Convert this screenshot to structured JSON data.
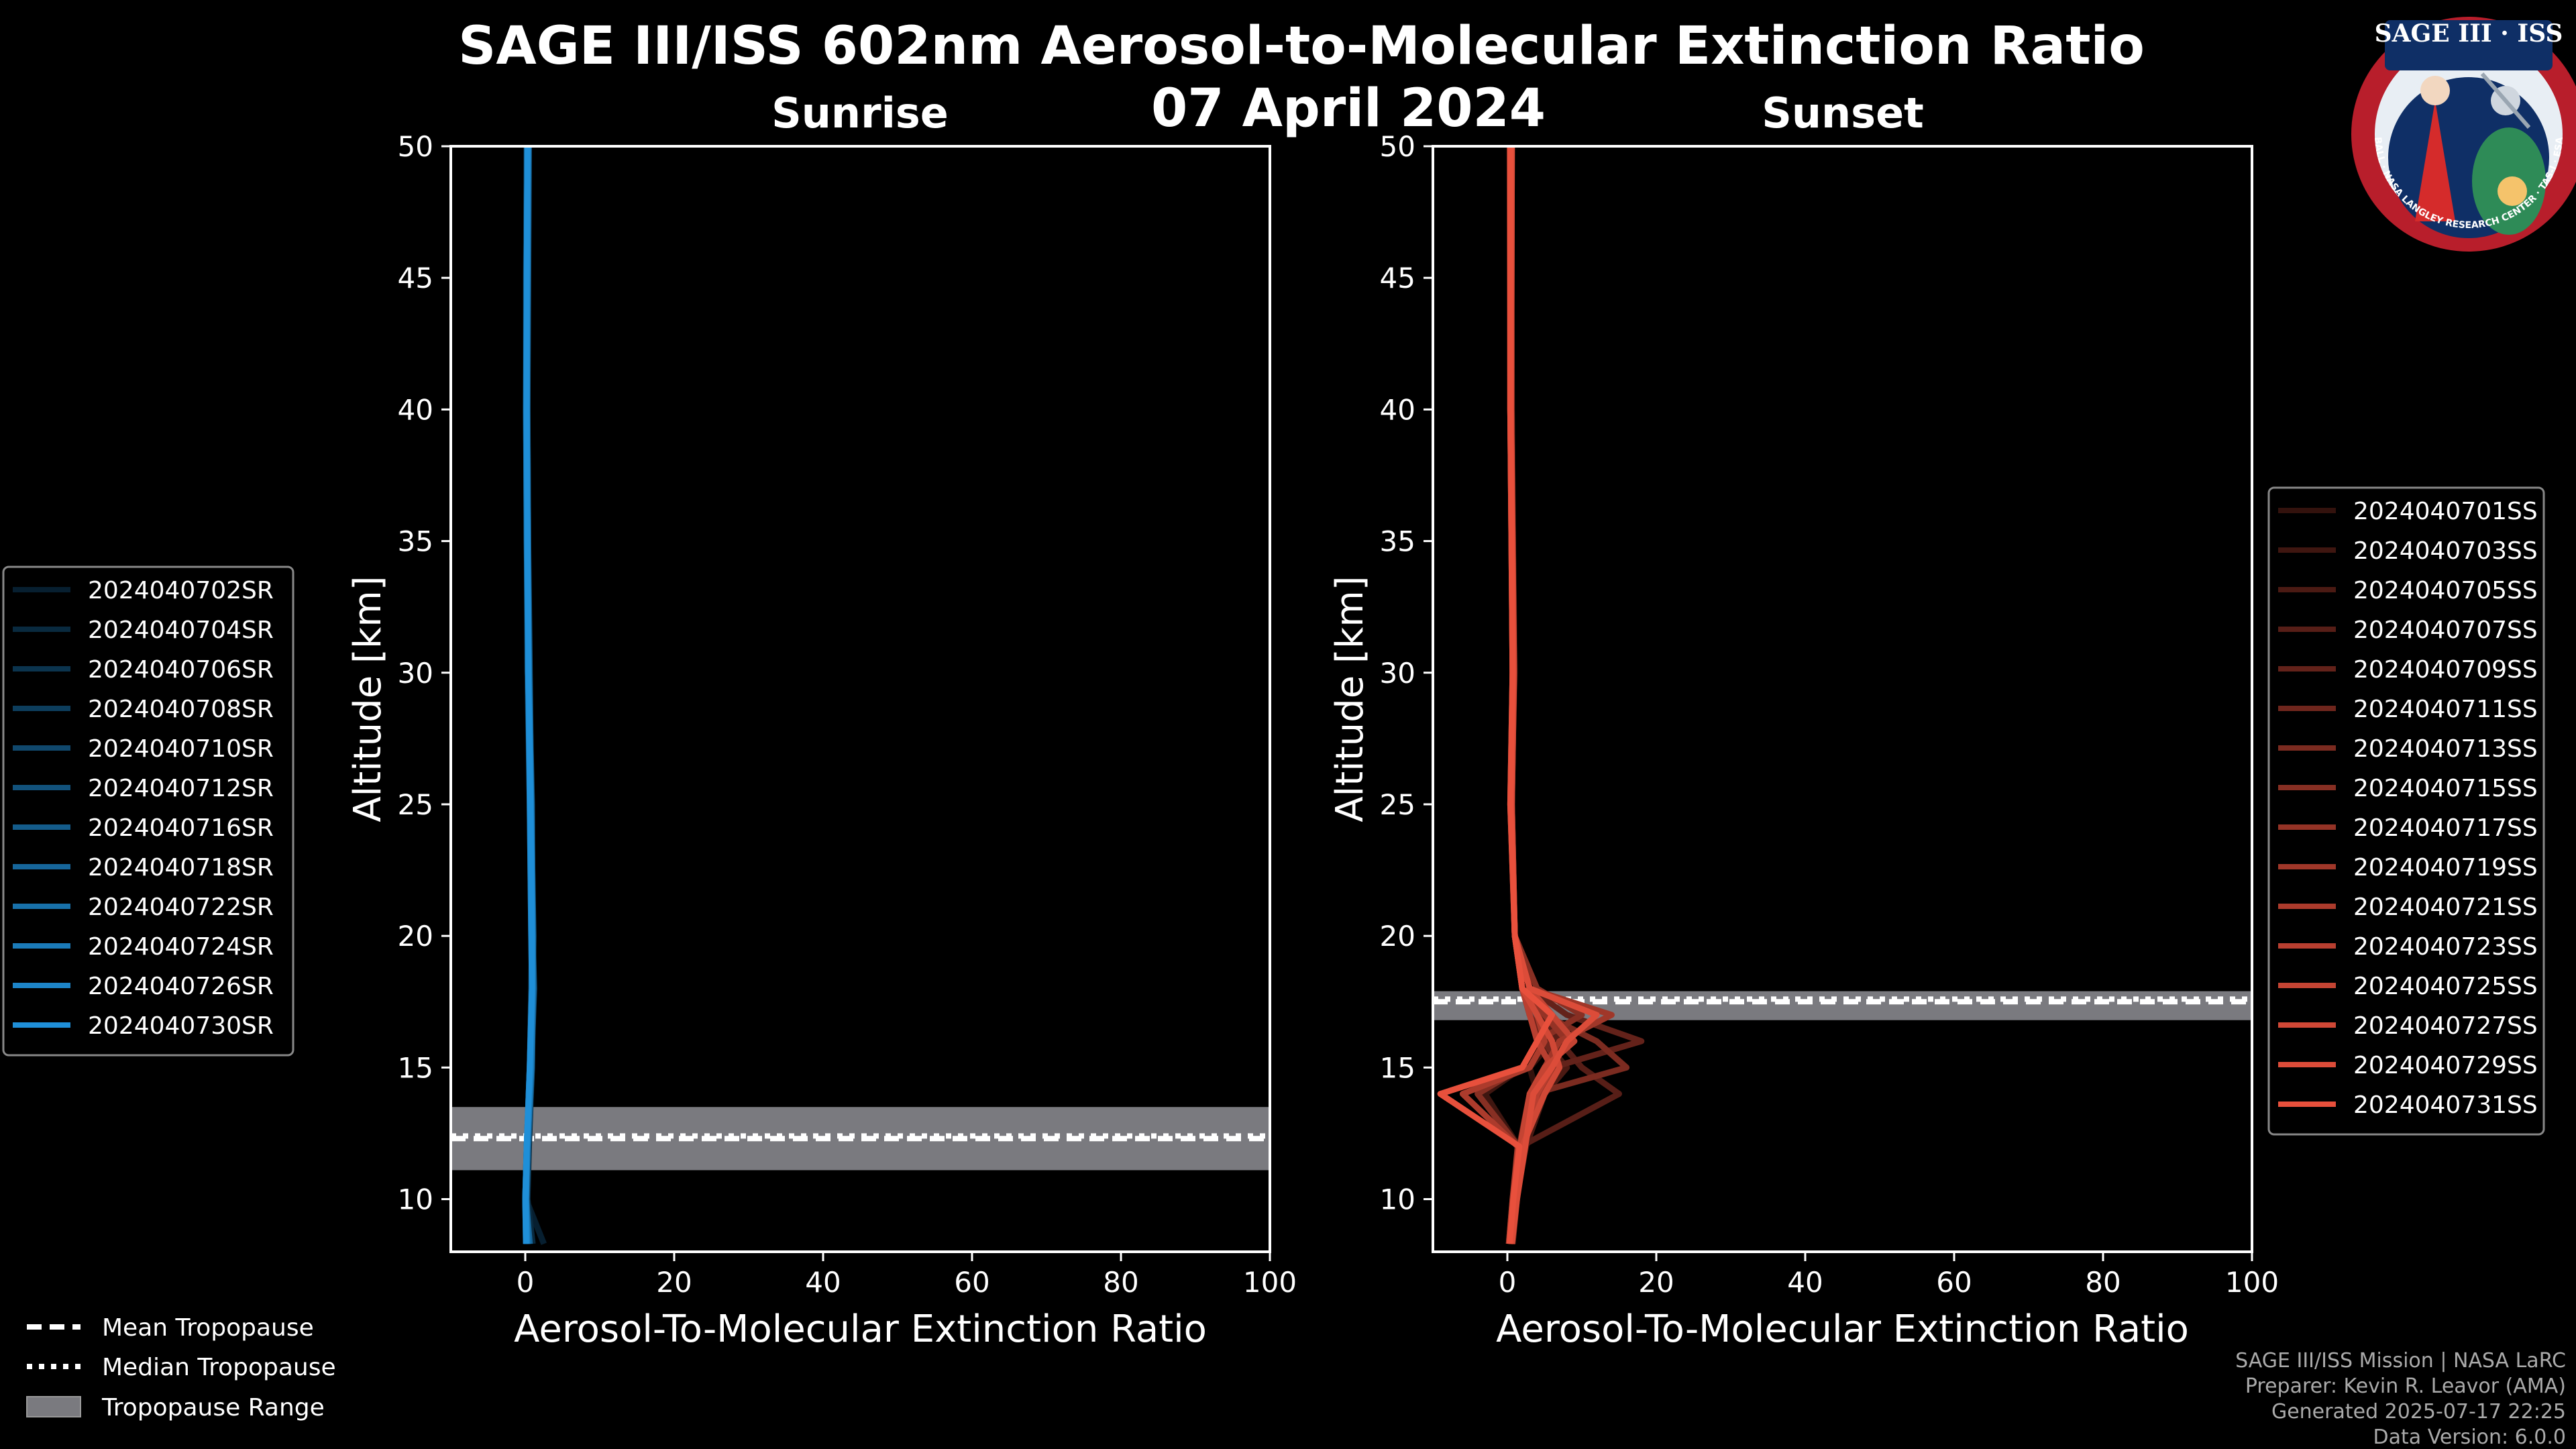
{
  "figure": {
    "title": "SAGE III/ISS 602nm Aerosol-to-Molecular Extinction Ratio",
    "date": "07 April 2024",
    "credits": [
      "SAGE III/ISS Mission | NASA LaRC",
      "Preparer: Kevin R. Leavor (AMA)",
      "Generated 2025-07-17 22:25",
      "Data Version: 6.0.0"
    ],
    "logo": {
      "title": "SAGE III · ISS",
      "ring_text": "BALL · NASA LANGLEY RESEARCH CENTER · TAS-I · ESA"
    },
    "tropopause_legend": [
      "Mean Tropopause",
      "Median Tropopause",
      "Tropopause Range"
    ],
    "colors": {
      "sunrise": "#1f8fd8",
      "sunset": "#e8503c",
      "tropopause_range": "#7a7a7f",
      "background": "#000000"
    }
  },
  "chart_data": [
    {
      "type": "line",
      "title": "Sunrise",
      "xlabel": "Aerosol-To-Molecular Extinction Ratio",
      "ylabel": "Altitude [km]",
      "xlim": [
        -10,
        100
      ],
      "ylim": [
        8,
        50
      ],
      "xticks": [
        0,
        20,
        40,
        60,
        80,
        100
      ],
      "yticks": [
        10,
        15,
        20,
        25,
        30,
        35,
        40,
        45,
        50
      ],
      "legend_position": "left",
      "tropopause": {
        "mean": 12.3,
        "median": 12.4,
        "range": [
          11.1,
          13.5
        ]
      },
      "series": [
        {
          "name": "2024040702SR",
          "alt": [
            8.3,
            10,
            12,
            15,
            18,
            20,
            25,
            30,
            35,
            40,
            45,
            50
          ],
          "ratio": [
            2.5,
            0.1,
            0.4,
            0.8,
            1.0,
            0.9,
            0.7,
            0.4,
            0.3,
            0.2,
            0.2,
            0.3
          ]
        },
        {
          "name": "2024040704SR",
          "alt": [
            8.3,
            10,
            12,
            15,
            18,
            20,
            25,
            30,
            35,
            40,
            45,
            50
          ],
          "ratio": [
            1.0,
            0.3,
            0.5,
            0.9,
            1.1,
            1.0,
            0.8,
            0.5,
            0.4,
            0.3,
            0.3,
            0.4
          ]
        },
        {
          "name": "2024040706SR",
          "alt": [
            8.3,
            10,
            12,
            15,
            18,
            20,
            25,
            30,
            35,
            40,
            45,
            50
          ],
          "ratio": [
            0.5,
            0.2,
            0.3,
            0.7,
            0.9,
            0.8,
            0.6,
            0.3,
            0.2,
            0.1,
            0.1,
            0.2
          ]
        },
        {
          "name": "2024040708SR",
          "alt": [
            8.3,
            10,
            12,
            15,
            18,
            20,
            25,
            30,
            35,
            40,
            45,
            50
          ],
          "ratio": [
            0.2,
            0.0,
            0.2,
            0.6,
            0.8,
            0.9,
            0.7,
            0.4,
            0.3,
            0.2,
            0.2,
            0.3
          ]
        },
        {
          "name": "2024040710SR",
          "alt": [
            8.3,
            10,
            12,
            15,
            18,
            20,
            25,
            30,
            35,
            40,
            45,
            50
          ],
          "ratio": [
            0.3,
            0.1,
            0.3,
            0.8,
            1.2,
            1.0,
            0.9,
            0.5,
            0.3,
            0.2,
            0.2,
            0.2
          ]
        },
        {
          "name": "2024040712SR",
          "alt": [
            8.3,
            10,
            12,
            15,
            18,
            20,
            25,
            30,
            35,
            40,
            45,
            50
          ],
          "ratio": [
            0.4,
            0.2,
            0.4,
            0.9,
            1.0,
            1.1,
            0.8,
            0.6,
            0.4,
            0.3,
            0.4,
            0.5
          ]
        },
        {
          "name": "2024040716SR",
          "alt": [
            8.3,
            10,
            12,
            15,
            18,
            20,
            25,
            30,
            35,
            40,
            45,
            50
          ],
          "ratio": [
            0.1,
            0.0,
            0.2,
            0.7,
            0.9,
            0.9,
            0.7,
            0.5,
            0.3,
            0.2,
            0.2,
            0.3
          ]
        },
        {
          "name": "2024040718SR",
          "alt": [
            8.3,
            10,
            12,
            15,
            18,
            20,
            25,
            30,
            35,
            40,
            45,
            50
          ],
          "ratio": [
            0.6,
            0.1,
            0.3,
            0.8,
            1.1,
            1.0,
            0.8,
            0.4,
            0.3,
            0.2,
            0.3,
            0.4
          ]
        },
        {
          "name": "2024040722SR",
          "alt": [
            8.3,
            10,
            12,
            15,
            18,
            20,
            25,
            30,
            35,
            40,
            45,
            50
          ],
          "ratio": [
            0.2,
            0.0,
            0.2,
            0.7,
            1.0,
            0.9,
            0.7,
            0.4,
            0.2,
            0.1,
            0.2,
            0.3
          ]
        },
        {
          "name": "2024040724SR",
          "alt": [
            8.3,
            10,
            12,
            15,
            18,
            20,
            25,
            30,
            35,
            40,
            45,
            50
          ],
          "ratio": [
            0.3,
            0.1,
            0.3,
            0.8,
            1.0,
            1.0,
            0.8,
            0.5,
            0.3,
            0.2,
            0.3,
            0.4
          ]
        },
        {
          "name": "2024040726SR",
          "alt": [
            8.3,
            10,
            12,
            15,
            18,
            20,
            25,
            30,
            35,
            40,
            45,
            50
          ],
          "ratio": [
            0.2,
            0.1,
            0.2,
            0.6,
            0.9,
            0.8,
            0.6,
            0.4,
            0.3,
            0.2,
            0.2,
            0.3
          ]
        },
        {
          "name": "2024040730SR",
          "alt": [
            8.3,
            10,
            12,
            15,
            18,
            20,
            25,
            30,
            35,
            40,
            45,
            50
          ],
          "ratio": [
            0.1,
            0.0,
            0.2,
            0.6,
            0.9,
            0.9,
            0.7,
            0.4,
            0.3,
            0.2,
            0.2,
            0.3
          ]
        }
      ]
    },
    {
      "type": "line",
      "title": "Sunset",
      "xlabel": "Aerosol-To-Molecular Extinction Ratio",
      "ylabel": "Altitude [km]",
      "xlim": [
        -10,
        100
      ],
      "ylim": [
        8,
        50
      ],
      "xticks": [
        0,
        20,
        40,
        60,
        80,
        100
      ],
      "yticks": [
        10,
        15,
        20,
        25,
        30,
        35,
        40,
        45,
        50
      ],
      "legend_position": "right",
      "tropopause": {
        "mean": 17.5,
        "median": 17.6,
        "range": [
          16.8,
          17.9
        ]
      },
      "series": [
        {
          "name": "2024040701SS",
          "alt": [
            8.3,
            10,
            12,
            14,
            15,
            16,
            17,
            18,
            20,
            25,
            30,
            40,
            50
          ],
          "ratio": [
            0.5,
            1.0,
            2.0,
            4.0,
            3.0,
            6.0,
            4.0,
            2.0,
            1.0,
            0.5,
            1.0,
            0.5,
            0.5
          ]
        },
        {
          "name": "2024040703SS",
          "alt": [
            8.3,
            10,
            12,
            14,
            15,
            16,
            17,
            18,
            20,
            25,
            30,
            40,
            50
          ],
          "ratio": [
            0.3,
            0.8,
            1.5,
            -3.0,
            2.0,
            4.0,
            6.0,
            3.0,
            1.0,
            0.6,
            0.8,
            0.4,
            0.4
          ]
        },
        {
          "name": "2024040705SS",
          "alt": [
            8.3,
            10,
            12,
            14,
            15,
            16,
            17,
            18,
            20,
            25,
            30,
            40,
            50
          ],
          "ratio": [
            0.6,
            1.2,
            2.5,
            5.0,
            8.0,
            5.0,
            3.0,
            2.0,
            1.0,
            0.4,
            0.7,
            0.5,
            0.6
          ]
        },
        {
          "name": "2024040707SS",
          "alt": [
            8.3,
            10,
            12,
            14,
            15,
            16,
            17,
            18,
            20,
            25,
            30,
            40,
            50
          ],
          "ratio": [
            0.4,
            0.9,
            1.8,
            15.0,
            10.0,
            7.0,
            4.0,
            2.0,
            1.0,
            0.5,
            0.9,
            0.6,
            0.5
          ]
        },
        {
          "name": "2024040709SS",
          "alt": [
            8.3,
            10,
            12,
            14,
            15,
            16,
            17,
            18,
            20,
            25,
            30,
            40,
            50
          ],
          "ratio": [
            0.2,
            0.7,
            1.6,
            3.0,
            6.0,
            18.0,
            8.0,
            3.0,
            1.0,
            0.6,
            0.8,
            0.4,
            0.3
          ]
        },
        {
          "name": "2024040711SS",
          "alt": [
            8.3,
            10,
            12,
            14,
            15,
            16,
            17,
            18,
            20,
            25,
            30,
            40,
            50
          ],
          "ratio": [
            0.5,
            1.1,
            2.2,
            4.0,
            7.0,
            5.0,
            3.0,
            2.0,
            1.0,
            0.5,
            0.7,
            0.5,
            0.4
          ]
        },
        {
          "name": "2024040713SS",
          "alt": [
            8.3,
            10,
            12,
            14,
            15,
            16,
            17,
            18,
            20,
            25,
            30,
            40,
            50
          ],
          "ratio": [
            0.7,
            1.3,
            2.0,
            3.5,
            16.0,
            12.0,
            5.0,
            2.0,
            1.0,
            0.5,
            0.8,
            0.5,
            0.5
          ]
        },
        {
          "name": "2024040715SS",
          "alt": [
            8.3,
            10,
            12,
            14,
            15,
            16,
            17,
            18,
            20,
            25,
            30,
            40,
            50
          ],
          "ratio": [
            0.3,
            0.8,
            1.5,
            -4.0,
            2.0,
            4.0,
            10.0,
            4.0,
            1.0,
            0.5,
            0.7,
            0.4,
            0.4
          ]
        },
        {
          "name": "2024040717SS",
          "alt": [
            8.3,
            10,
            12,
            14,
            15,
            16,
            17,
            18,
            20,
            25,
            30,
            40,
            50
          ],
          "ratio": [
            0.4,
            1.0,
            2.1,
            4.5,
            6.0,
            8.0,
            5.0,
            2.0,
            1.0,
            0.6,
            0.9,
            0.5,
            0.6
          ]
        },
        {
          "name": "2024040719SS",
          "alt": [
            8.3,
            10,
            12,
            14,
            15,
            16,
            17,
            18,
            20,
            25,
            30,
            40,
            50
          ],
          "ratio": [
            0.6,
            1.2,
            1.9,
            3.0,
            5.0,
            7.0,
            14.0,
            3.0,
            1.0,
            0.5,
            0.8,
            0.4,
            0.5
          ]
        },
        {
          "name": "2024040721SS",
          "alt": [
            8.3,
            10,
            12,
            14,
            15,
            16,
            17,
            18,
            20,
            25,
            30,
            40,
            50
          ],
          "ratio": [
            0.2,
            0.7,
            1.4,
            -6.0,
            3.0,
            5.0,
            4.0,
            2.0,
            1.0,
            0.4,
            0.7,
            0.5,
            0.4
          ]
        },
        {
          "name": "2024040723SS",
          "alt": [
            8.3,
            10,
            12,
            14,
            15,
            16,
            17,
            18,
            20,
            25,
            30,
            40,
            50
          ],
          "ratio": [
            0.5,
            1.1,
            2.3,
            4.0,
            6.0,
            4.0,
            3.0,
            2.0,
            1.0,
            0.5,
            0.8,
            0.5,
            0.5
          ]
        },
        {
          "name": "2024040725SS",
          "alt": [
            8.3,
            10,
            12,
            14,
            15,
            16,
            17,
            18,
            20,
            25,
            30,
            40,
            50
          ],
          "ratio": [
            0.3,
            0.9,
            1.7,
            3.0,
            5.0,
            9.0,
            6.0,
            3.0,
            1.0,
            0.5,
            0.7,
            0.4,
            0.4
          ]
        },
        {
          "name": "2024040727SS",
          "alt": [
            8.3,
            10,
            12,
            14,
            15,
            16,
            17,
            18,
            20,
            25,
            30,
            40,
            50
          ],
          "ratio": [
            0.4,
            1.0,
            2.0,
            5.0,
            7.0,
            6.0,
            4.0,
            2.0,
            1.0,
            0.6,
            0.9,
            0.5,
            0.5
          ]
        },
        {
          "name": "2024040729SS",
          "alt": [
            8.3,
            10,
            12,
            14,
            15,
            16,
            17,
            18,
            20,
            25,
            30,
            40,
            50
          ],
          "ratio": [
            0.6,
            1.3,
            2.4,
            3.5,
            6.0,
            8.0,
            12.0,
            3.0,
            1.0,
            0.5,
            0.8,
            0.5,
            0.6
          ]
        },
        {
          "name": "2024040731SS",
          "alt": [
            8.3,
            10,
            12,
            14,
            15,
            16,
            17,
            18,
            20,
            25,
            30,
            40,
            50
          ],
          "ratio": [
            0.3,
            0.8,
            1.6,
            -9.0,
            2.0,
            4.0,
            6.0,
            2.0,
            1.0,
            0.4,
            0.7,
            0.4,
            0.4
          ]
        }
      ]
    }
  ]
}
